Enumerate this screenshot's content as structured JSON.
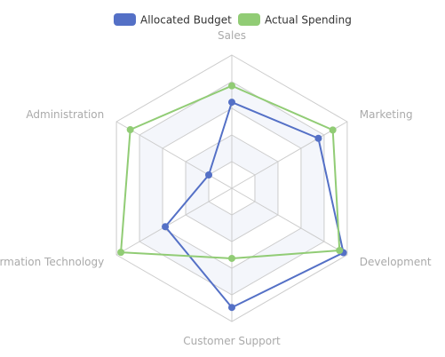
{
  "chart_data": {
    "type": "radar",
    "indicators": [
      {
        "name": "Sales",
        "max": 6500
      },
      {
        "name": "Marketing",
        "max": 16000
      },
      {
        "name": "Development",
        "max": 30000
      },
      {
        "name": "Customer Support",
        "max": 38000
      },
      {
        "name": "Information Technology",
        "max": 52000
      },
      {
        "name": "Administration",
        "max": 25000
      }
    ],
    "series": [
      {
        "name": "Allocated Budget",
        "color": "#5470c6",
        "values": [
          4200,
          12000,
          29000,
          34000,
          30000,
          5000
        ]
      },
      {
        "name": "Actual Spending",
        "color": "#91cc75",
        "values": [
          5000,
          14000,
          28000,
          20000,
          50000,
          22000
        ]
      }
    ],
    "legend": {
      "position": "top-center"
    },
    "split_number": 5,
    "split_area_colors": [
      "#ffffff",
      "#f4f6fb"
    ],
    "line_color": "#cccccc",
    "label_color": "#aaaaaa"
  }
}
